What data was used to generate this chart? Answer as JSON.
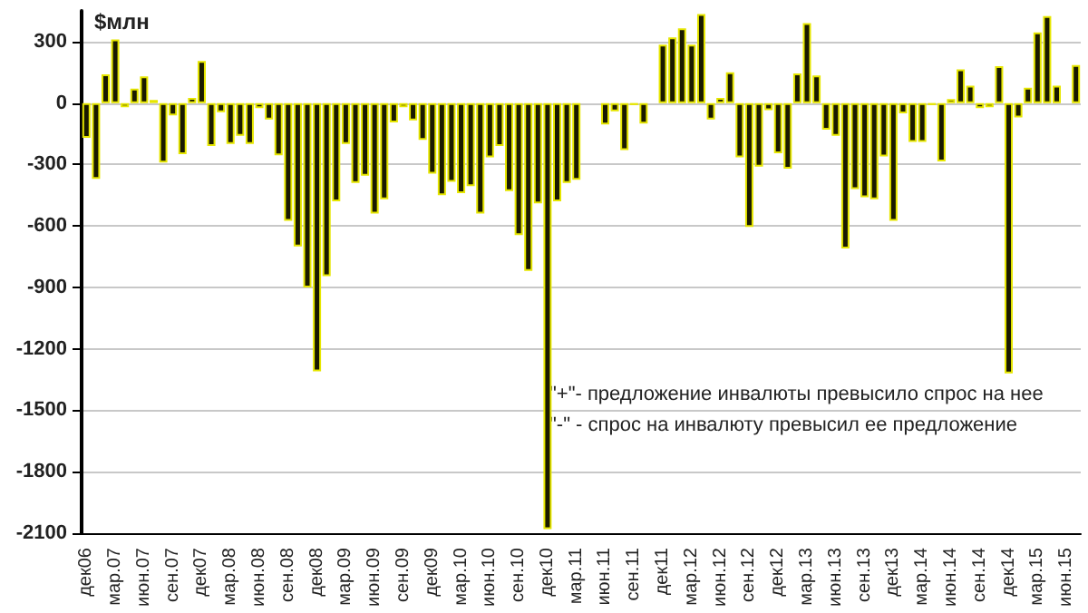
{
  "chart_data": {
    "type": "bar",
    "ylabel": "$млн",
    "categories": [
      "дек06",
      null,
      null,
      "мар.07",
      null,
      null,
      "июн.07",
      null,
      null,
      "сен.07",
      null,
      null,
      "дек07",
      null,
      null,
      "мар.08",
      null,
      null,
      "июн.08",
      null,
      null,
      "сен.08",
      null,
      null,
      "дек08",
      null,
      null,
      "мар.09",
      null,
      null,
      "июн.09",
      null,
      null,
      "сен.09",
      null,
      null,
      "дек09",
      null,
      null,
      "мар.10",
      null,
      null,
      "июн.10",
      null,
      null,
      "сен.10",
      null,
      null,
      "дек10",
      null,
      null,
      "мар.11",
      null,
      null,
      "июн.11",
      null,
      null,
      "сен.11",
      null,
      null,
      "дек11",
      null,
      null,
      "мар.12",
      null,
      null,
      "июн.12",
      null,
      null,
      "сен.12",
      null,
      null,
      "дек12",
      null,
      null,
      "мар.13",
      null,
      null,
      "июн.13",
      null,
      null,
      "сен.13",
      null,
      null,
      "дек13",
      null,
      null,
      "мар.14",
      null,
      null,
      "июн.14",
      null,
      null,
      "сен.14",
      null,
      null,
      "дек14",
      null,
      null,
      "мар.15",
      null,
      null,
      "июн.15",
      null
    ],
    "values": [
      -170,
      -370,
      140,
      310,
      -20,
      70,
      130,
      15,
      -290,
      -60,
      -250,
      25,
      205,
      -210,
      -45,
      -200,
      -160,
      -200,
      -25,
      -80,
      -255,
      -575,
      -700,
      -900,
      -1310,
      -845,
      -480,
      -200,
      -390,
      -355,
      -540,
      -470,
      -95,
      -20,
      -85,
      -180,
      -345,
      -450,
      -385,
      -440,
      -405,
      -540,
      -265,
      -210,
      -430,
      -645,
      -820,
      -490,
      -2080,
      -480,
      -390,
      -375,
      0,
      0,
      -105,
      -40,
      -230,
      -10,
      -100,
      0,
      285,
      320,
      365,
      285,
      435,
      -80,
      25,
      150,
      -265,
      -605,
      -310,
      -35,
      -245,
      -320,
      145,
      390,
      135,
      -130,
      -160,
      -710,
      -420,
      -460,
      -470,
      -260,
      -575,
      -50,
      -190,
      -190,
      -10,
      -285,
      20,
      165,
      85,
      -25,
      -20,
      180,
      -1320,
      -70,
      75,
      345,
      425,
      85,
      0,
      185
    ],
    "color": "#1a1a00",
    "ylim": [
      -2100,
      450
    ],
    "yticks": [
      -2100,
      -1800,
      -1500,
      -1200,
      -900,
      -600,
      -300,
      0,
      300
    ],
    "grid": "y",
    "annotations": [
      "\"+\"- предложение инвалюты превысило спрос на нее",
      "\"-\" - спрос на инвалюту превысил ее предложение"
    ]
  }
}
